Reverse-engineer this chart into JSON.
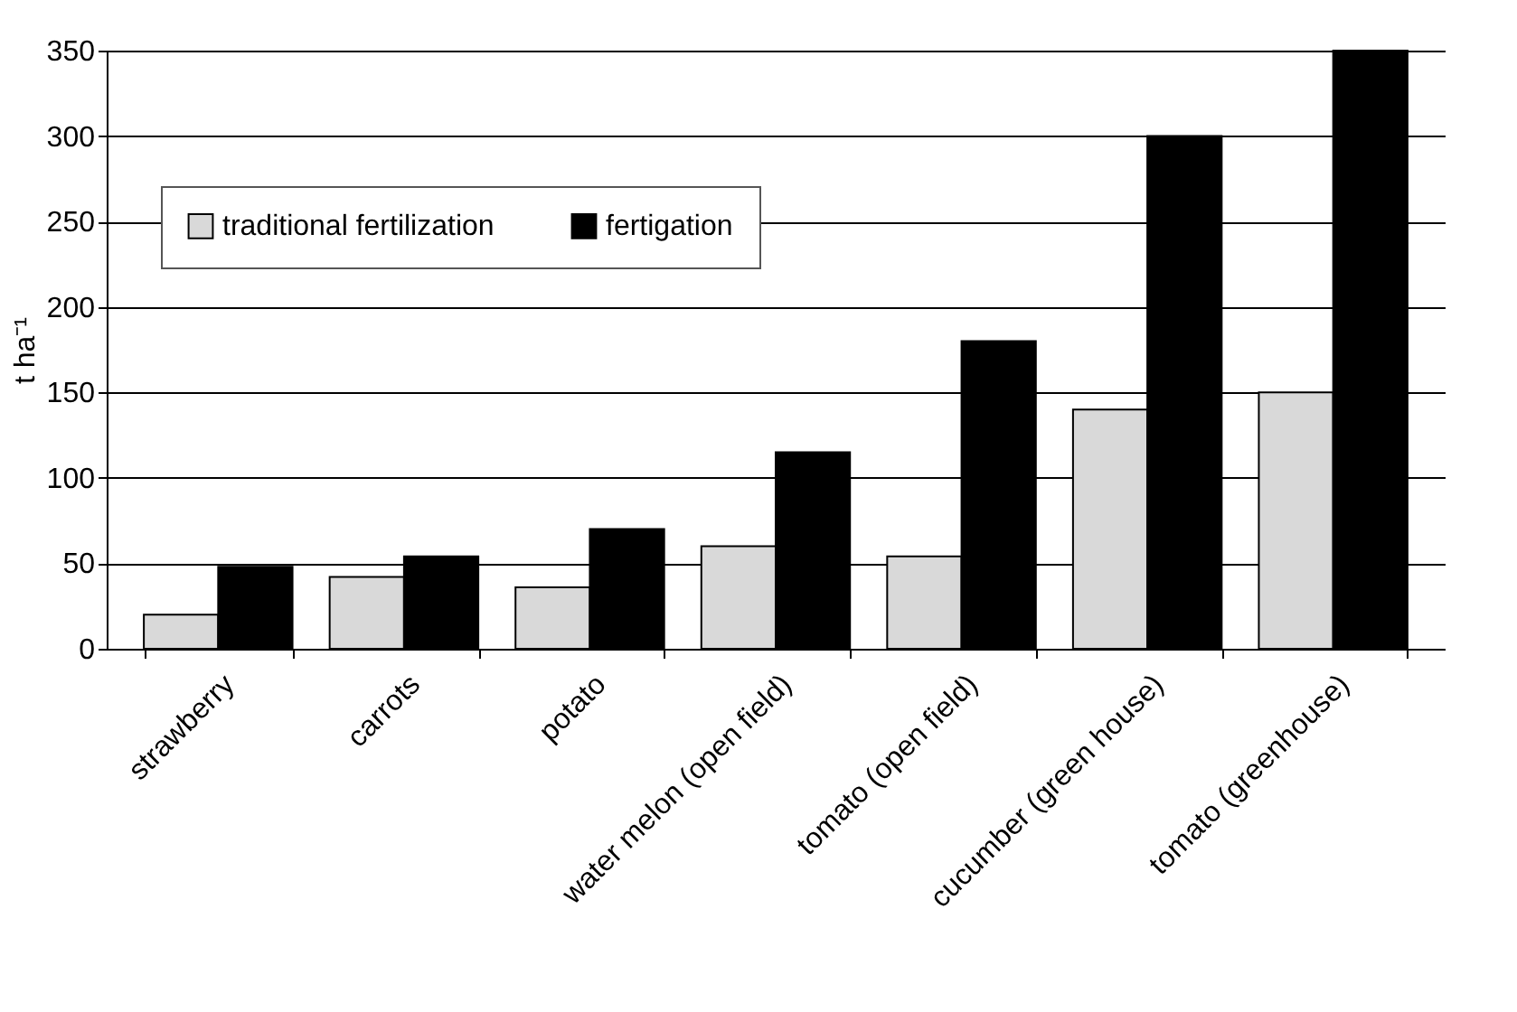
{
  "chart_data": {
    "type": "bar",
    "ylabel": "t ha⁻¹",
    "categories": [
      "strawberry",
      "carrots",
      "potato",
      "water melon (open field)",
      "tomato (open field)",
      "cucumber (green house)",
      "tomato (greenhouse)"
    ],
    "series": [
      {
        "name": "traditional fertilization",
        "color": "#d9d9d9",
        "values": [
          20,
          42,
          36,
          60,
          54,
          140,
          150
        ]
      },
      {
        "name": "fertigation",
        "color": "#000000",
        "values": [
          48,
          54,
          70,
          115,
          180,
          300,
          350
        ]
      }
    ],
    "ylim": [
      0,
      350
    ],
    "yticks": [
      0,
      50,
      100,
      150,
      200,
      250,
      300,
      350
    ],
    "grid": "y",
    "legend": "top left"
  }
}
